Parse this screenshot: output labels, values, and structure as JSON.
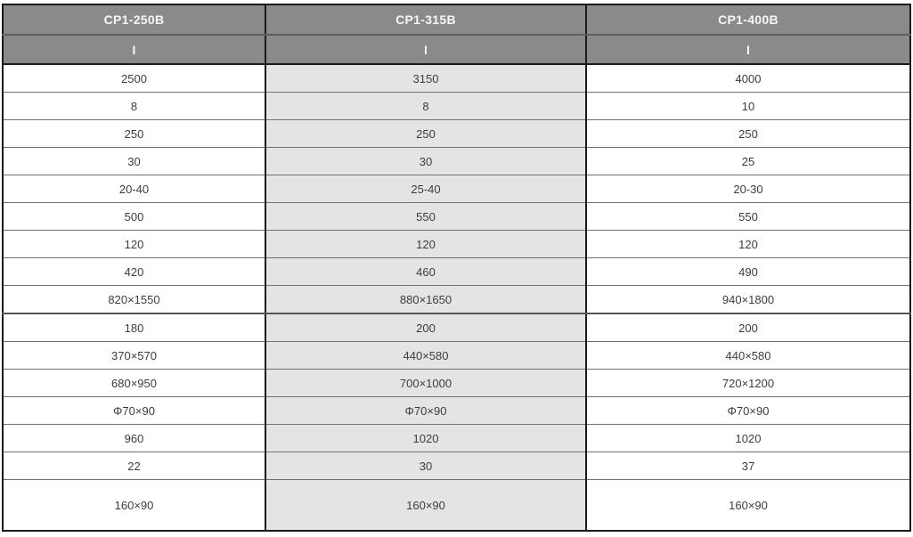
{
  "table": {
    "columns": [
      {
        "model": "CP1-250B",
        "subheader": "I"
      },
      {
        "model": "CP1-315B",
        "subheader": "I"
      },
      {
        "model": "CP1-400B",
        "subheader": "I"
      }
    ],
    "rows": [
      [
        "2500",
        "3150",
        "4000"
      ],
      [
        "8",
        "8",
        "10"
      ],
      [
        "250",
        "250",
        "250"
      ],
      [
        "30",
        "30",
        "25"
      ],
      [
        "20-40",
        "25-40",
        "20-30"
      ],
      [
        "500",
        "550",
        "550"
      ],
      [
        "120",
        "120",
        "120"
      ],
      [
        "420",
        "460",
        "490"
      ],
      [
        "820×1550",
        "880×1650",
        "940×1800"
      ],
      [
        "180",
        "200",
        "200"
      ],
      [
        "370×570",
        "440×580",
        "440×580"
      ],
      [
        "680×950",
        "700×1000",
        "720×1200"
      ],
      [
        "Φ70×90",
        "Φ70×90",
        "Φ70×90"
      ],
      [
        "960",
        "1020",
        "1020"
      ],
      [
        "22",
        "30",
        "37"
      ],
      [
        "160×90",
        "160×90",
        "160×90"
      ]
    ],
    "thick_divider_after_row_index": 8,
    "tall_last_row": true
  },
  "colors": {
    "header_bg": "#8a8a8a",
    "header_text": "#f7f7f7",
    "shaded_col_bg": "#e4e4e4",
    "cell_text": "#3d3d3d",
    "border_dark": "#1a1a1a"
  }
}
